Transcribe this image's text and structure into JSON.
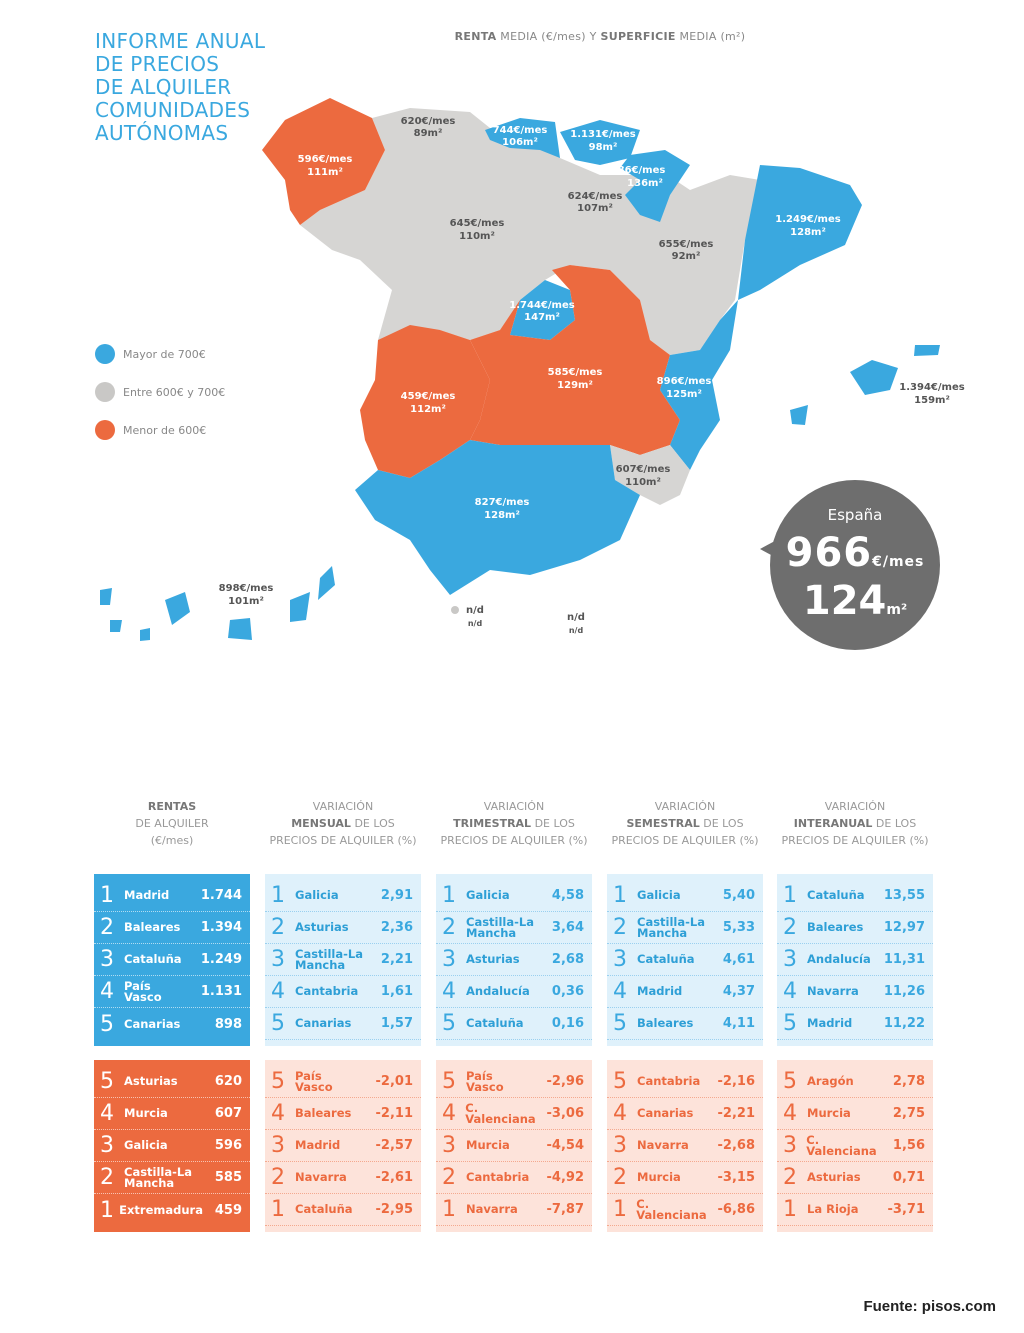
{
  "title_lines": [
    "INFORME ANUAL",
    "DE PRECIOS",
    "DE ALQUILER",
    "COMUNIDADES",
    "AUTÓNOMAS"
  ],
  "subtitle": {
    "b1": "RENTA",
    "t1": " MEDIA (€/mes) Y ",
    "b2": "SUPERFICIE",
    "t2": " MEDIA (m²)"
  },
  "colors": {
    "blue": "#3aa8df",
    "gray": "#d6d5d3",
    "orange": "#ec6a3f",
    "dark": "#6e6e6e"
  },
  "legend": [
    {
      "label": "Mayor de 700€",
      "color": "#3aa8df"
    },
    {
      "label": "Entre 600€ y 700€",
      "color": "#c9c8c6"
    },
    {
      "label": "Menor de 600€",
      "color": "#ec6a3f"
    }
  ],
  "regions": {
    "galicia": {
      "rent": "596€/mes",
      "area": "111m²"
    },
    "asturias": {
      "rent": "620€/mes",
      "area": "89m²"
    },
    "cantabria": {
      "rent": "744€/mes",
      "area": "106m²"
    },
    "pais_vasco": {
      "rent": "1.131€/mes",
      "area": "98m²"
    },
    "navarra": {
      "rent": "886€/mes",
      "area": "136m²"
    },
    "la_rioja": {
      "rent": "624€/mes",
      "area": "107m²"
    },
    "castilla_leon": {
      "rent": "645€/mes",
      "area": "110m²"
    },
    "aragon": {
      "rent": "655€/mes",
      "area": "92m²"
    },
    "cataluna": {
      "rent": "1.249€/mes",
      "area": "128m²"
    },
    "madrid": {
      "rent": "1.744€/mes",
      "area": "147m²"
    },
    "extremadura": {
      "rent": "459€/mes",
      "area": "112m²"
    },
    "castilla_mancha": {
      "rent": "585€/mes",
      "area": "129m²"
    },
    "valencia": {
      "rent": "896€/mes",
      "area": "125m²"
    },
    "baleares": {
      "rent": "1.394€/mes",
      "area": "159m²"
    },
    "murcia": {
      "rent": "607€/mes",
      "area": "110m²"
    },
    "andalucia": {
      "rent": "827€/mes",
      "area": "128m²"
    },
    "canarias": {
      "rent": "898€/mes",
      "area": "101m²"
    },
    "ceuta": {
      "rent": "n/d",
      "area": "n/d"
    },
    "melilla": {
      "rent": "n/d",
      "area": "n/d"
    }
  },
  "spain": {
    "label": "España",
    "rent": "966",
    "rent_unit": "€/mes",
    "area": "124",
    "area_unit": "m²"
  },
  "columns": [
    {
      "head": {
        "pre": "",
        "bold": "RENTAS",
        "mid": "DE ALQUILER",
        "post": "(€/mes)"
      },
      "top": [
        {
          "rank": "1",
          "name": "Madrid",
          "value": "1.744"
        },
        {
          "rank": "2",
          "name": "Baleares",
          "value": "1.394"
        },
        {
          "rank": "3",
          "name": "Cataluña",
          "value": "1.249"
        },
        {
          "rank": "4",
          "name": "País Vasco",
          "value": "1.131"
        },
        {
          "rank": "5",
          "name": "Canarias",
          "value": "898"
        }
      ],
      "bottom": [
        {
          "rank": "5",
          "name": "Asturias",
          "value": "620"
        },
        {
          "rank": "4",
          "name": "Murcia",
          "value": "607"
        },
        {
          "rank": "3",
          "name": "Galicia",
          "value": "596"
        },
        {
          "rank": "2",
          "name": "Castilla-La Mancha",
          "value": "585"
        },
        {
          "rank": "1",
          "name": "Extremadura",
          "value": "459"
        }
      ]
    },
    {
      "head": {
        "pre": "VARIACIÓN",
        "bold": "MENSUAL",
        "mid": " DE LOS",
        "post": "PRECIOS DE ALQUILER (%)"
      },
      "top": [
        {
          "rank": "1",
          "name": "Galicia",
          "value": "2,91"
        },
        {
          "rank": "2",
          "name": "Asturias",
          "value": "2,36"
        },
        {
          "rank": "3",
          "name": "Castilla-La Mancha",
          "value": "2,21"
        },
        {
          "rank": "4",
          "name": "Cantabria",
          "value": "1,61"
        },
        {
          "rank": "5",
          "name": "Canarias",
          "value": "1,57"
        }
      ],
      "bottom": [
        {
          "rank": "5",
          "name": "País Vasco",
          "value": "-2,01"
        },
        {
          "rank": "4",
          "name": "Baleares",
          "value": "-2,11"
        },
        {
          "rank": "3",
          "name": "Madrid",
          "value": "-2,57"
        },
        {
          "rank": "2",
          "name": "Navarra",
          "value": "-2,61"
        },
        {
          "rank": "1",
          "name": "Cataluña",
          "value": "-2,95"
        }
      ]
    },
    {
      "head": {
        "pre": "VARIACIÓN",
        "bold": "TRIMESTRAL",
        "mid": " DE LOS",
        "post": "PRECIOS DE ALQUILER (%)"
      },
      "top": [
        {
          "rank": "1",
          "name": "Galicia",
          "value": "4,58"
        },
        {
          "rank": "2",
          "name": "Castilla-La Mancha",
          "value": "3,64"
        },
        {
          "rank": "3",
          "name": "Asturias",
          "value": "2,68"
        },
        {
          "rank": "4",
          "name": "Andalucía",
          "value": "0,36"
        },
        {
          "rank": "5",
          "name": "Cataluña",
          "value": "0,16"
        }
      ],
      "bottom": [
        {
          "rank": "5",
          "name": "País Vasco",
          "value": "-2,96"
        },
        {
          "rank": "4",
          "name": "C. Valenciana",
          "value": "-3,06"
        },
        {
          "rank": "3",
          "name": "Murcia",
          "value": "-4,54"
        },
        {
          "rank": "2",
          "name": "Cantabria",
          "value": "-4,92"
        },
        {
          "rank": "1",
          "name": "Navarra",
          "value": "-7,87"
        }
      ]
    },
    {
      "head": {
        "pre": "VARIACIÓN",
        "bold": "SEMESTRAL",
        "mid": " DE LOS",
        "post": "PRECIOS DE ALQUILER (%)"
      },
      "top": [
        {
          "rank": "1",
          "name": "Galicia",
          "value": "5,40"
        },
        {
          "rank": "2",
          "name": "Castilla-La Mancha",
          "value": "5,33"
        },
        {
          "rank": "3",
          "name": "Cataluña",
          "value": "4,61"
        },
        {
          "rank": "4",
          "name": "Madrid",
          "value": "4,37"
        },
        {
          "rank": "5",
          "name": "Baleares",
          "value": "4,11"
        }
      ],
      "bottom": [
        {
          "rank": "5",
          "name": "Cantabria",
          "value": "-2,16"
        },
        {
          "rank": "4",
          "name": "Canarias",
          "value": "-2,21"
        },
        {
          "rank": "3",
          "name": "Navarra",
          "value": "-2,68"
        },
        {
          "rank": "2",
          "name": "Murcia",
          "value": "-3,15"
        },
        {
          "rank": "1",
          "name": "C. Valenciana",
          "value": "-6,86"
        }
      ]
    },
    {
      "head": {
        "pre": "VARIACIÓN",
        "bold": "INTERANUAL",
        "mid": " DE LOS",
        "post": "PRECIOS DE ALQUILER (%)"
      },
      "top": [
        {
          "rank": "1",
          "name": "Cataluña",
          "value": "13,55"
        },
        {
          "rank": "2",
          "name": "Baleares",
          "value": "12,97"
        },
        {
          "rank": "3",
          "name": "Andalucía",
          "value": "11,31"
        },
        {
          "rank": "4",
          "name": "Navarra",
          "value": "11,26"
        },
        {
          "rank": "5",
          "name": "Madrid",
          "value": "11,22"
        }
      ],
      "bottom": [
        {
          "rank": "5",
          "name": "Aragón",
          "value": "2,78"
        },
        {
          "rank": "4",
          "name": "Murcia",
          "value": "2,75"
        },
        {
          "rank": "3",
          "name": "C. Valenciana",
          "value": "1,56"
        },
        {
          "rank": "2",
          "name": "Asturias",
          "value": "0,71"
        },
        {
          "rank": "1",
          "name": "La Rioja",
          "value": "-3,71"
        }
      ]
    }
  ],
  "source": "Fuente: pisos.com"
}
